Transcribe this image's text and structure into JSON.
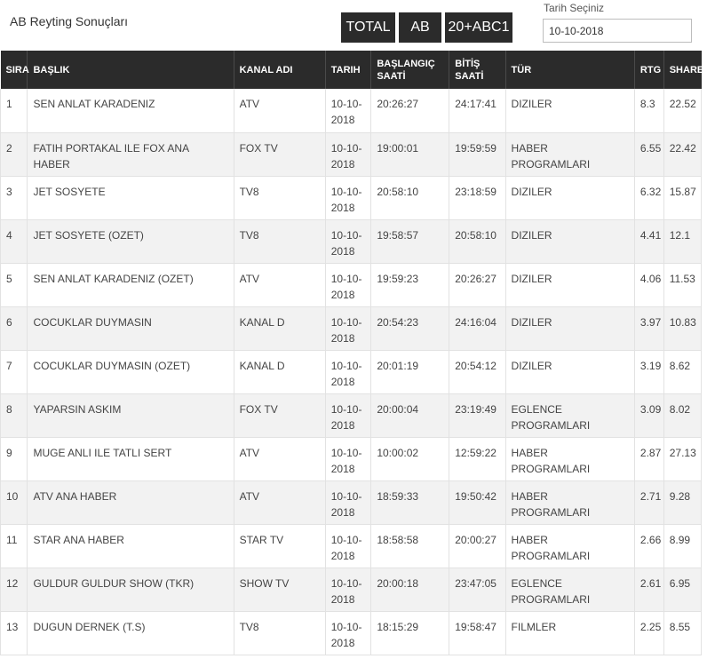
{
  "page": {
    "title": "AB Reyting Sonuçları"
  },
  "filters": {
    "total_label": "TOTAL",
    "ab_label": "AB",
    "abc1_label": "20+ABC1"
  },
  "date_picker": {
    "label": "Tarih Seçiniz",
    "value": "10-10-2018"
  },
  "table": {
    "headers": {
      "sira": "SIRA",
      "baslik": "BAŞLIK",
      "kanal": "KANAL ADI",
      "tarih": "TARIH",
      "baslangic": "BAŞLANGIÇ SAATİ",
      "bitis": "BİTİŞ SAATİ",
      "tur": "TÜR",
      "rtg": "RTG",
      "share": "SHARE"
    },
    "rows": [
      {
        "sira": "1",
        "baslik": "SEN ANLAT KARADENIZ",
        "kanal": "ATV",
        "tarih": "10-10-2018",
        "baslangic": "20:26:27",
        "bitis": "24:17:41",
        "tur": "DIZILER",
        "rtg": "8.3",
        "share": "22.52"
      },
      {
        "sira": "2",
        "baslik": "FATIH PORTAKAL ILE FOX ANA HABER",
        "kanal": "FOX TV",
        "tarih": "10-10-2018",
        "baslangic": "19:00:01",
        "bitis": "19:59:59",
        "tur": "HABER PROGRAMLARI",
        "rtg": "6.55",
        "share": "22.42"
      },
      {
        "sira": "3",
        "baslik": "JET SOSYETE",
        "kanal": "TV8",
        "tarih": "10-10-2018",
        "baslangic": "20:58:10",
        "bitis": "23:18:59",
        "tur": "DIZILER",
        "rtg": "6.32",
        "share": "15.87"
      },
      {
        "sira": "4",
        "baslik": "JET SOSYETE (OZET)",
        "kanal": "TV8",
        "tarih": "10-10-2018",
        "baslangic": "19:58:57",
        "bitis": "20:58:10",
        "tur": "DIZILER",
        "rtg": "4.41",
        "share": "12.1"
      },
      {
        "sira": "5",
        "baslik": "SEN ANLAT KARADENIZ (OZET)",
        "kanal": "ATV",
        "tarih": "10-10-2018",
        "baslangic": "19:59:23",
        "bitis": "20:26:27",
        "tur": "DIZILER",
        "rtg": "4.06",
        "share": "11.53"
      },
      {
        "sira": "6",
        "baslik": "COCUKLAR DUYMASIN",
        "kanal": "KANAL D",
        "tarih": "10-10-2018",
        "baslangic": "20:54:23",
        "bitis": "24:16:04",
        "tur": "DIZILER",
        "rtg": "3.97",
        "share": "10.83"
      },
      {
        "sira": "7",
        "baslik": "COCUKLAR DUYMASIN (OZET)",
        "kanal": "KANAL D",
        "tarih": "10-10-2018",
        "baslangic": "20:01:19",
        "bitis": "20:54:12",
        "tur": "DIZILER",
        "rtg": "3.19",
        "share": "8.62"
      },
      {
        "sira": "8",
        "baslik": "YAPARSIN ASKIM",
        "kanal": "FOX TV",
        "tarih": "10-10-2018",
        "baslangic": "20:00:04",
        "bitis": "23:19:49",
        "tur": "EGLENCE PROGRAMLARI",
        "rtg": "3.09",
        "share": "8.02"
      },
      {
        "sira": "9",
        "baslik": "MUGE ANLI ILE TATLI SERT",
        "kanal": "ATV",
        "tarih": "10-10-2018",
        "baslangic": "10:00:02",
        "bitis": "12:59:22",
        "tur": "HABER PROGRAMLARI",
        "rtg": "2.87",
        "share": "27.13"
      },
      {
        "sira": "10",
        "baslik": "ATV ANA HABER",
        "kanal": "ATV",
        "tarih": "10-10-2018",
        "baslangic": "18:59:33",
        "bitis": "19:50:42",
        "tur": "HABER PROGRAMLARI",
        "rtg": "2.71",
        "share": "9.28"
      },
      {
        "sira": "11",
        "baslik": "STAR ANA HABER",
        "kanal": "STAR TV",
        "tarih": "10-10-2018",
        "baslangic": "18:58:58",
        "bitis": "20:00:27",
        "tur": "HABER PROGRAMLARI",
        "rtg": "2.66",
        "share": "8.99"
      },
      {
        "sira": "12",
        "baslik": "GULDUR GULDUR SHOW (TKR)",
        "kanal": "SHOW TV",
        "tarih": "10-10-2018",
        "baslangic": "20:00:18",
        "bitis": "23:47:05",
        "tur": "EGLENCE PROGRAMLARI",
        "rtg": "2.61",
        "share": "6.95"
      },
      {
        "sira": "13",
        "baslik": "DUGUN DERNEK (T.S)",
        "kanal": "TV8",
        "tarih": "10-10-2018",
        "baslangic": "18:15:29",
        "bitis": "19:58:47",
        "tur": "FILMLER",
        "rtg": "2.25",
        "share": "8.55"
      }
    ]
  }
}
